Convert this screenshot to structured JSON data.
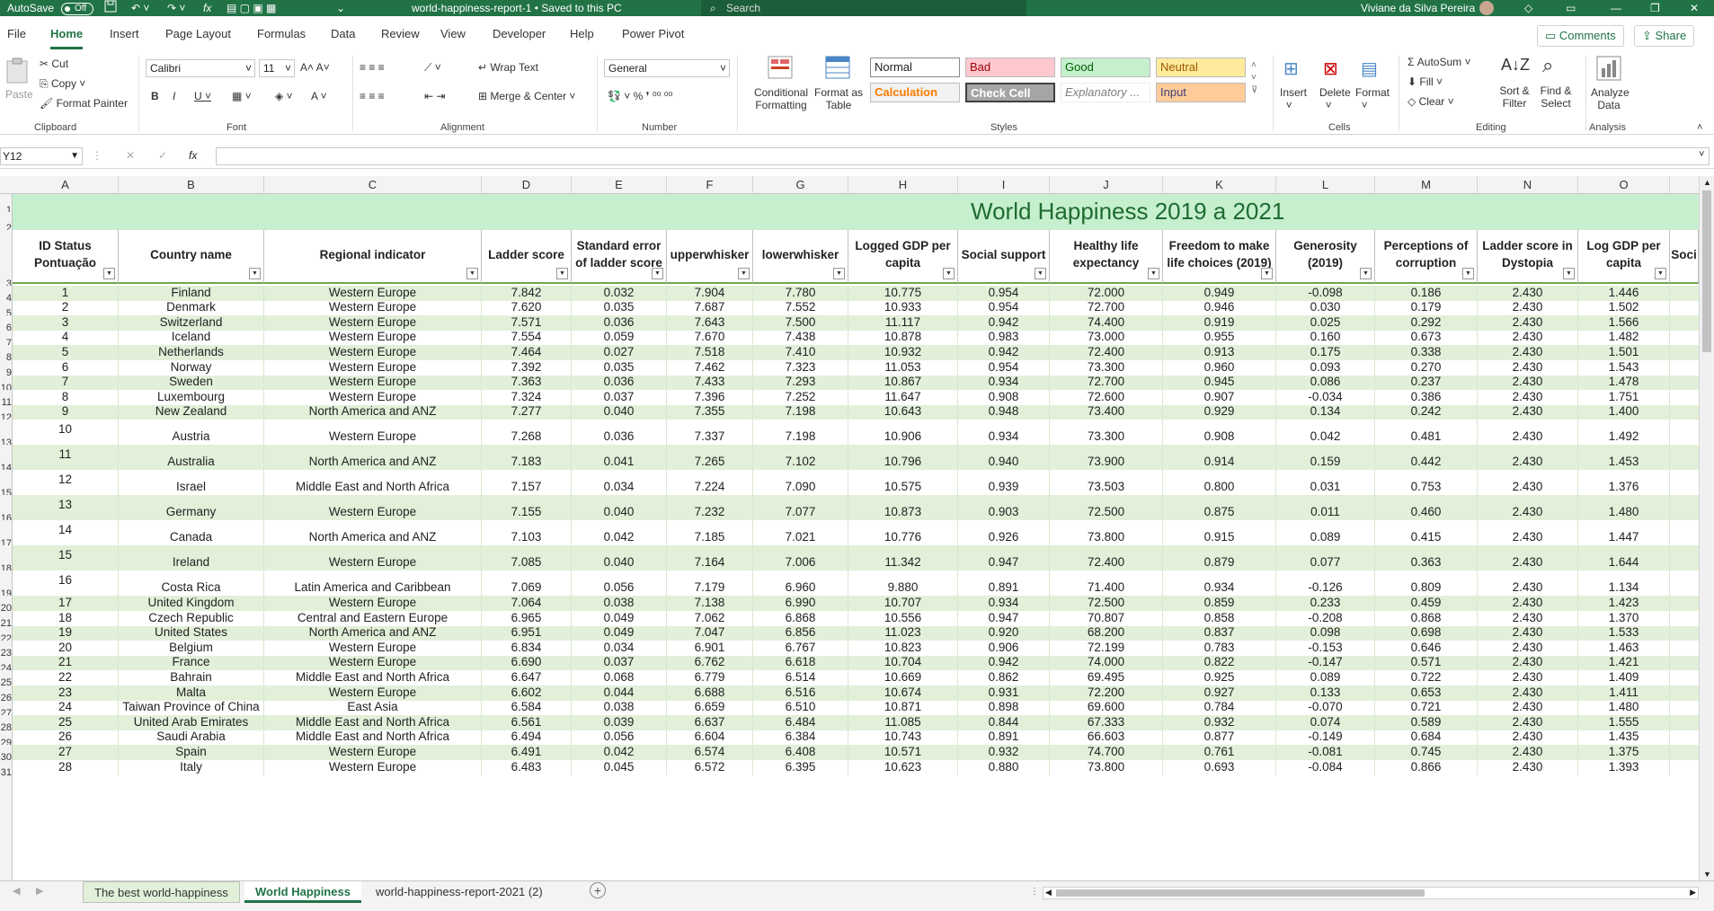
{
  "titlebar": {
    "autosave": "AutoSave",
    "autosave_state": "Off",
    "filename": "world-happiness-report-1 • Saved to this PC",
    "search_placeholder": "Search",
    "user": "Viviane da Silva Pereira"
  },
  "menu": [
    "File",
    "Home",
    "Insert",
    "Page Layout",
    "Formulas",
    "Data",
    "Review",
    "View",
    "Developer",
    "Help",
    "Power Pivot"
  ],
  "active_menu": "Home",
  "comments": "Comments",
  "share": "Share",
  "ribbon": {
    "clipboard": {
      "paste": "Paste",
      "cut": "Cut",
      "copy": "Copy",
      "format_painter": "Format Painter",
      "label": "Clipboard"
    },
    "font": {
      "family": "Calibri",
      "size": "11",
      "label": "Font"
    },
    "alignment": {
      "wrap": "Wrap Text",
      "merge": "Merge & Center",
      "label": "Alignment"
    },
    "number": {
      "format": "General",
      "label": "Number"
    },
    "styles": {
      "conditional": "Conditional Formatting",
      "format_table": "Format as Table",
      "normal": "Normal",
      "bad": "Bad",
      "good": "Good",
      "neutral": "Neutral",
      "calculation": "Calculation",
      "check_cell": "Check Cell",
      "explanatory": "Explanatory ...",
      "input": "Input",
      "label": "Styles"
    },
    "cells": {
      "insert": "Insert",
      "delete": "Delete",
      "format": "Format",
      "label": "Cells"
    },
    "editing": {
      "autosum": "AutoSum",
      "fill": "Fill",
      "clear": "Clear",
      "sort": "Sort & Filter",
      "find": "Find & Select",
      "label": "Editing"
    },
    "analysis": {
      "analyze": "Analyze Data",
      "label": "Analysis"
    }
  },
  "namebox": "Y12",
  "columns": [
    "A",
    "B",
    "C",
    "D",
    "E",
    "F",
    "G",
    "H",
    "I",
    "J",
    "K",
    "L",
    "M",
    "N",
    "O"
  ],
  "sheet_title": "World Happiness 2019 a 2021",
  "headers": [
    "ID Status Pontuação",
    "Country name",
    "Regional indicator",
    "Ladder score",
    "Standard error of ladder score",
    "upperwhisker",
    "lowerwhisker",
    "Logged GDP per capita",
    "Social support",
    "Healthy life expectancy",
    "Freedom to make life choices (2019)",
    "Generosity (2019)",
    "Perceptions of corruption",
    "Ladder score in Dystopia",
    "Log GDP per capita",
    "Soci"
  ],
  "row_numbers": [
    "1",
    "2",
    "3",
    "4",
    "5",
    "6",
    "7",
    "8",
    "9",
    "10",
    "11",
    "12",
    "13",
    "14",
    "15",
    "16",
    "17",
    "18",
    "19",
    "20",
    "21",
    "22",
    "23",
    "24",
    "25",
    "26",
    "27",
    "28",
    "29",
    "30",
    "31"
  ],
  "rows": [
    [
      "1",
      "Finland",
      "Western Europe",
      "7.842",
      "0.032",
      "7.904",
      "7.780",
      "10.775",
      "0.954",
      "72.000",
      "0.949",
      "-0.098",
      "0.186",
      "2.430",
      "1.446"
    ],
    [
      "2",
      "Denmark",
      "Western Europe",
      "7.620",
      "0.035",
      "7.687",
      "7.552",
      "10.933",
      "0.954",
      "72.700",
      "0.946",
      "0.030",
      "0.179",
      "2.430",
      "1.502"
    ],
    [
      "3",
      "Switzerland",
      "Western Europe",
      "7.571",
      "0.036",
      "7.643",
      "7.500",
      "11.117",
      "0.942",
      "74.400",
      "0.919",
      "0.025",
      "0.292",
      "2.430",
      "1.566"
    ],
    [
      "4",
      "Iceland",
      "Western Europe",
      "7.554",
      "0.059",
      "7.670",
      "7.438",
      "10.878",
      "0.983",
      "73.000",
      "0.955",
      "0.160",
      "0.673",
      "2.430",
      "1.482"
    ],
    [
      "5",
      "Netherlands",
      "Western Europe",
      "7.464",
      "0.027",
      "7.518",
      "7.410",
      "10.932",
      "0.942",
      "72.400",
      "0.913",
      "0.175",
      "0.338",
      "2.430",
      "1.501"
    ],
    [
      "6",
      "Norway",
      "Western Europe",
      "7.392",
      "0.035",
      "7.462",
      "7.323",
      "11.053",
      "0.954",
      "73.300",
      "0.960",
      "0.093",
      "0.270",
      "2.430",
      "1.543"
    ],
    [
      "7",
      "Sweden",
      "Western Europe",
      "7.363",
      "0.036",
      "7.433",
      "7.293",
      "10.867",
      "0.934",
      "72.700",
      "0.945",
      "0.086",
      "0.237",
      "2.430",
      "1.478"
    ],
    [
      "8",
      "Luxembourg",
      "Western Europe",
      "7.324",
      "0.037",
      "7.396",
      "7.252",
      "11.647",
      "0.908",
      "72.600",
      "0.907",
      "-0.034",
      "0.386",
      "2.430",
      "1.751"
    ],
    [
      "9",
      "New Zealand",
      "North America and ANZ",
      "7.277",
      "0.040",
      "7.355",
      "7.198",
      "10.643",
      "0.948",
      "73.400",
      "0.929",
      "0.134",
      "0.242",
      "2.430",
      "1.400"
    ],
    [
      "10",
      "Austria",
      "Western Europe",
      "7.268",
      "0.036",
      "7.337",
      "7.198",
      "10.906",
      "0.934",
      "73.300",
      "0.908",
      "0.042",
      "0.481",
      "2.430",
      "1.492"
    ],
    [
      "11",
      "Australia",
      "North America and ANZ",
      "7.183",
      "0.041",
      "7.265",
      "7.102",
      "10.796",
      "0.940",
      "73.900",
      "0.914",
      "0.159",
      "0.442",
      "2.430",
      "1.453"
    ],
    [
      "12",
      "Israel",
      "Middle East and North Africa",
      "7.157",
      "0.034",
      "7.224",
      "7.090",
      "10.575",
      "0.939",
      "73.503",
      "0.800",
      "0.031",
      "0.753",
      "2.430",
      "1.376"
    ],
    [
      "13",
      "Germany",
      "Western Europe",
      "7.155",
      "0.040",
      "7.232",
      "7.077",
      "10.873",
      "0.903",
      "72.500",
      "0.875",
      "0.011",
      "0.460",
      "2.430",
      "1.480"
    ],
    [
      "14",
      "Canada",
      "North America and ANZ",
      "7.103",
      "0.042",
      "7.185",
      "7.021",
      "10.776",
      "0.926",
      "73.800",
      "0.915",
      "0.089",
      "0.415",
      "2.430",
      "1.447"
    ],
    [
      "15",
      "Ireland",
      "Western Europe",
      "7.085",
      "0.040",
      "7.164",
      "7.006",
      "11.342",
      "0.947",
      "72.400",
      "0.879",
      "0.077",
      "0.363",
      "2.430",
      "1.644"
    ],
    [
      "16",
      "Costa Rica",
      "Latin America and Caribbean",
      "7.069",
      "0.056",
      "7.179",
      "6.960",
      "9.880",
      "0.891",
      "71.400",
      "0.934",
      "-0.126",
      "0.809",
      "2.430",
      "1.134"
    ],
    [
      "17",
      "United Kingdom",
      "Western Europe",
      "7.064",
      "0.038",
      "7.138",
      "6.990",
      "10.707",
      "0.934",
      "72.500",
      "0.859",
      "0.233",
      "0.459",
      "2.430",
      "1.423"
    ],
    [
      "18",
      "Czech Republic",
      "Central and Eastern Europe",
      "6.965",
      "0.049",
      "7.062",
      "6.868",
      "10.556",
      "0.947",
      "70.807",
      "0.858",
      "-0.208",
      "0.868",
      "2.430",
      "1.370"
    ],
    [
      "19",
      "United States",
      "North America and ANZ",
      "6.951",
      "0.049",
      "7.047",
      "6.856",
      "11.023",
      "0.920",
      "68.200",
      "0.837",
      "0.098",
      "0.698",
      "2.430",
      "1.533"
    ],
    [
      "20",
      "Belgium",
      "Western Europe",
      "6.834",
      "0.034",
      "6.901",
      "6.767",
      "10.823",
      "0.906",
      "72.199",
      "0.783",
      "-0.153",
      "0.646",
      "2.430",
      "1.463"
    ],
    [
      "21",
      "France",
      "Western Europe",
      "6.690",
      "0.037",
      "6.762",
      "6.618",
      "10.704",
      "0.942",
      "74.000",
      "0.822",
      "-0.147",
      "0.571",
      "2.430",
      "1.421"
    ],
    [
      "22",
      "Bahrain",
      "Middle East and North Africa",
      "6.647",
      "0.068",
      "6.779",
      "6.514",
      "10.669",
      "0.862",
      "69.495",
      "0.925",
      "0.089",
      "0.722",
      "2.430",
      "1.409"
    ],
    [
      "23",
      "Malta",
      "Western Europe",
      "6.602",
      "0.044",
      "6.688",
      "6.516",
      "10.674",
      "0.931",
      "72.200",
      "0.927",
      "0.133",
      "0.653",
      "2.430",
      "1.411"
    ],
    [
      "24",
      "Taiwan Province of China",
      "East Asia",
      "6.584",
      "0.038",
      "6.659",
      "6.510",
      "10.871",
      "0.898",
      "69.600",
      "0.784",
      "-0.070",
      "0.721",
      "2.430",
      "1.480"
    ],
    [
      "25",
      "United Arab Emirates",
      "Middle East and North Africa",
      "6.561",
      "0.039",
      "6.637",
      "6.484",
      "11.085",
      "0.844",
      "67.333",
      "0.932",
      "0.074",
      "0.589",
      "2.430",
      "1.555"
    ],
    [
      "26",
      "Saudi Arabia",
      "Middle East and North Africa",
      "6.494",
      "0.056",
      "6.604",
      "6.384",
      "10.743",
      "0.891",
      "66.603",
      "0.877",
      "-0.149",
      "0.684",
      "2.430",
      "1.435"
    ],
    [
      "27",
      "Spain",
      "Western Europe",
      "6.491",
      "0.042",
      "6.574",
      "6.408",
      "10.571",
      "0.932",
      "74.700",
      "0.761",
      "-0.081",
      "0.745",
      "2.430",
      "1.375"
    ],
    [
      "28",
      "Italy",
      "Western Europe",
      "6.483",
      "0.045",
      "6.572",
      "6.395",
      "10.623",
      "0.880",
      "73.800",
      "0.693",
      "-0.084",
      "0.866",
      "2.430",
      "1.393"
    ]
  ],
  "sheet_tabs": [
    "The best world-happiness",
    "World Happiness",
    "world-happiness-report-2021 (2)"
  ],
  "active_tab": "World Happiness",
  "colors": {
    "excel_green": "#217346",
    "band": "#e2f0d9",
    "title_band": "#c6efce"
  }
}
